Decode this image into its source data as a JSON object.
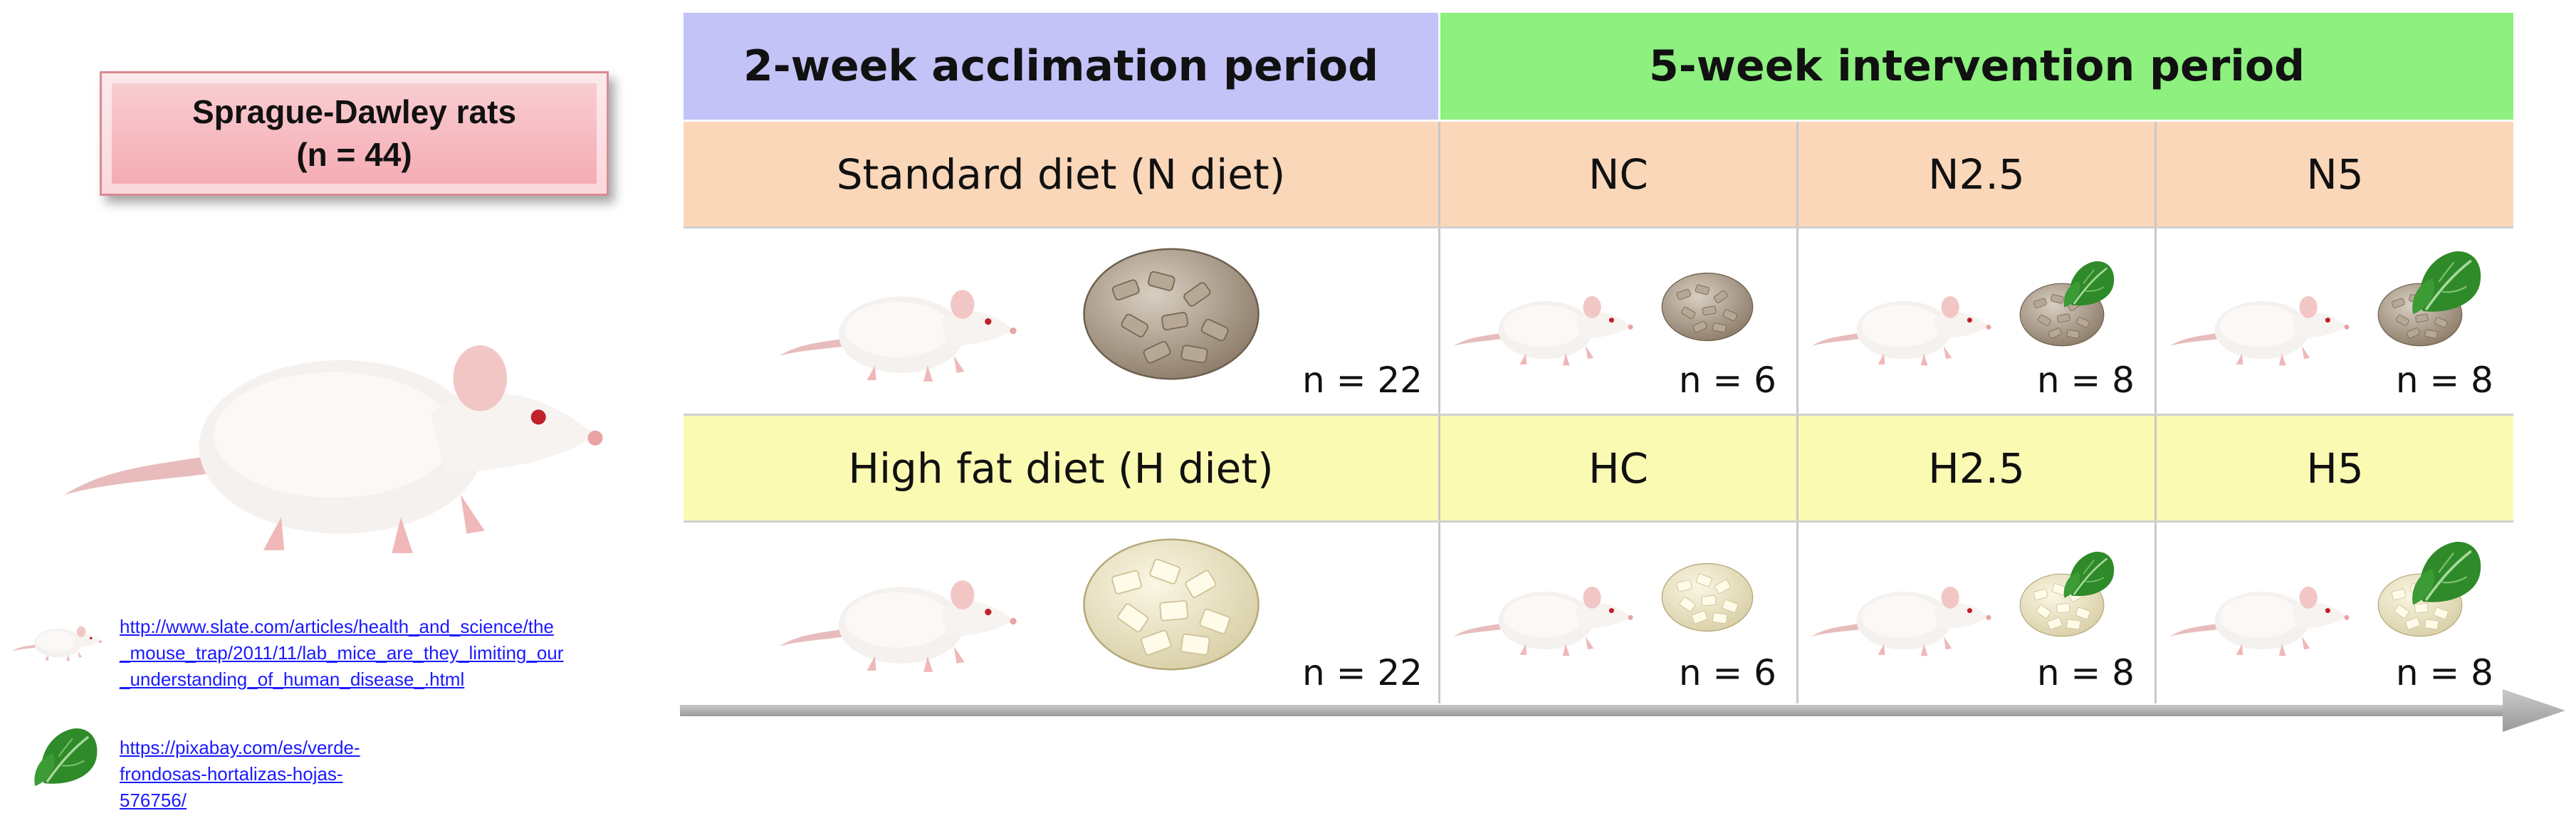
{
  "left": {
    "title_line1": "Sprague-Dawley  rats",
    "title_line2": "(n = 44)",
    "credits": [
      {
        "text": "http://www.slate.com/articles/health_and_science/the_mouse_trap/2011/11/lab_mice_are_they_limiting_our_understanding_of_human_disease_.html",
        "lines": [
          "http://www.slate.com/articles/health_and_science/the",
          "_mouse_trap/2011/11/lab_mice_are_they_limiting_our",
          "_understanding_of_human_disease_.html"
        ]
      },
      {
        "text": "https://pixabay.com/es/verde-frondosas-hortalizas-hojas-576756/",
        "lines": [
          "https://pixabay.com/es/verde-",
          "frondosas-hortalizas-hojas-",
          "576756/"
        ]
      }
    ]
  },
  "table": {
    "acclimation_header": "2-week acclimation period",
    "intervention_header": "5-week intervention period",
    "n_diet": {
      "label": "Standard diet (N diet)",
      "n_total": "n = 22",
      "groups": [
        {
          "name": "NC",
          "n": "n = 6"
        },
        {
          "name": "N2.5",
          "n": "n = 8"
        },
        {
          "name": "N5",
          "n": "n = 8"
        }
      ]
    },
    "h_diet": {
      "label": "High fat diet (H diet)",
      "n_total": "n = 22",
      "groups": [
        {
          "name": "HC",
          "n": "n = 6"
        },
        {
          "name": "H2.5",
          "n": "n = 8"
        },
        {
          "name": "H5",
          "n": "n = 8"
        }
      ]
    }
  },
  "colors": {
    "acclimation": "#c3c3f8",
    "intervention": "#8df07f",
    "n_diet": "#fbd7b9",
    "h_diet": "#fbfab2",
    "link": "#1a1aff"
  }
}
